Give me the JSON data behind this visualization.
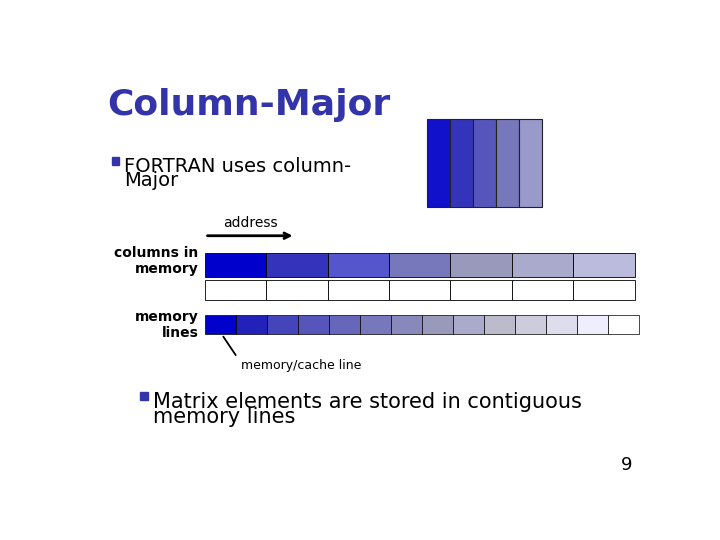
{
  "title": "Column-Major",
  "title_color": "#3333AA",
  "title_fontsize": 26,
  "bg_color": "#FFFFFF",
  "bullet1_line1": "FORTRAN uses column-",
  "bullet1_line2": "Major",
  "bullet2_line1": "Matrix elements are stored in contiguous",
  "bullet2_line2": "memory lines",
  "bullet_color": "#000000",
  "bullet_fontsize": 14,
  "bullet_square_color": "#3333AA",
  "page_number": "9",
  "matrix_col_colors": [
    "#1111CC",
    "#3333BB",
    "#5555BB",
    "#7777BB",
    "#9999CC",
    "#AAAACC",
    "#BBBBDD"
  ],
  "matrix_ncols": 5,
  "label_color": "#000000",
  "address_label": "address",
  "columns_label": "columns in\nmemory",
  "memory_lines_label": "memory\nlines",
  "cache_line_label": "memory/cache line",
  "top_bar_colors": [
    "#0000CC",
    "#3333BB",
    "#5555CC",
    "#7777BB",
    "#9999BB",
    "#AAAACC",
    "#BBBBDD"
  ],
  "bot_bar_colors": [
    "#0000CC",
    "#2222BB",
    "#4444BB",
    "#5555BB",
    "#6666BB",
    "#7777BB",
    "#8888BB",
    "#9999BB",
    "#AAAACC",
    "#BBBBCC",
    "#CCCCDD",
    "#DDDDEE",
    "#EEEEFF",
    "#FFFFFF"
  ]
}
